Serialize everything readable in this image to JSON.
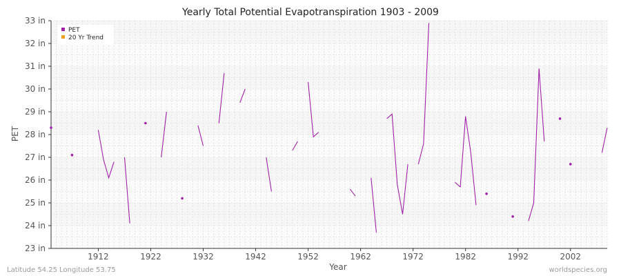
{
  "chart_data": {
    "type": "line",
    "title": "Yearly Total Potential Evapotranspiration 1903 - 2009",
    "xlabel": "Year",
    "ylabel": "PET",
    "xlim": [
      1903,
      2009
    ],
    "ylim": [
      23,
      33
    ],
    "x_ticks": [
      1912,
      1922,
      1932,
      1942,
      1952,
      1962,
      1972,
      1982,
      1992,
      2002
    ],
    "y_ticks": [
      {
        "value": 23,
        "label": "23 in"
      },
      {
        "value": 24,
        "label": "24 in"
      },
      {
        "value": 25,
        "label": "25 in"
      },
      {
        "value": 26,
        "label": "26 in"
      },
      {
        "value": 27,
        "label": "27 in"
      },
      {
        "value": 28,
        "label": "28 in"
      },
      {
        "value": 29,
        "label": "29 in"
      },
      {
        "value": 30,
        "label": "30 in"
      },
      {
        "value": 31,
        "label": "31 in"
      },
      {
        "value": 32,
        "label": "32 in"
      },
      {
        "value": 33,
        "label": "33 in"
      }
    ],
    "grid": true,
    "legend_position": "top-left",
    "series": [
      {
        "name": "PET",
        "color": "#a020a8",
        "points": [
          [
            1903,
            28.3
          ],
          [
            1907,
            27.1
          ],
          [
            1912,
            28.2
          ],
          [
            1913,
            26.9
          ],
          [
            1914,
            26.1
          ],
          [
            1915,
            26.8
          ],
          [
            1917,
            27.0
          ],
          [
            1918,
            24.1
          ],
          [
            1921,
            28.5
          ],
          [
            1924,
            27.0
          ],
          [
            1925,
            29.0
          ],
          [
            1928,
            25.2
          ],
          [
            1931,
            28.4
          ],
          [
            1932,
            27.5
          ],
          [
            1935,
            28.5
          ],
          [
            1936,
            30.7
          ],
          [
            1939,
            29.4
          ],
          [
            1940,
            30.0
          ],
          [
            1944,
            27.0
          ],
          [
            1945,
            25.5
          ],
          [
            1949,
            27.3
          ],
          [
            1950,
            27.7
          ],
          [
            1952,
            30.3
          ],
          [
            1953,
            27.9
          ],
          [
            1954,
            28.1
          ],
          [
            1960,
            25.6
          ],
          [
            1961,
            25.3
          ],
          [
            1964,
            26.1
          ],
          [
            1965,
            23.7
          ],
          [
            1967,
            28.7
          ],
          [
            1968,
            28.9
          ],
          [
            1969,
            25.8
          ],
          [
            1970,
            24.5
          ],
          [
            1971,
            26.7
          ],
          [
            1973,
            26.7
          ],
          [
            1974,
            27.6
          ],
          [
            1975,
            32.9
          ],
          [
            1980,
            25.9
          ],
          [
            1981,
            25.7
          ],
          [
            1982,
            28.8
          ],
          [
            1983,
            27.2
          ],
          [
            1984,
            24.9
          ],
          [
            1986,
            25.4
          ],
          [
            1991,
            24.4
          ],
          [
            1994,
            24.2
          ],
          [
            1995,
            25.0
          ],
          [
            1996,
            30.9
          ],
          [
            1997,
            27.7
          ],
          [
            2000,
            28.7
          ],
          [
            2002,
            26.7
          ],
          [
            2008,
            27.2
          ],
          [
            2009,
            28.3
          ]
        ]
      },
      {
        "name": "20 Yr Trend",
        "color": "#f0a020",
        "points": []
      }
    ]
  },
  "footer": {
    "left": "Latitude 54.25 Longitude 53.75",
    "right": "worldspecies.org"
  }
}
